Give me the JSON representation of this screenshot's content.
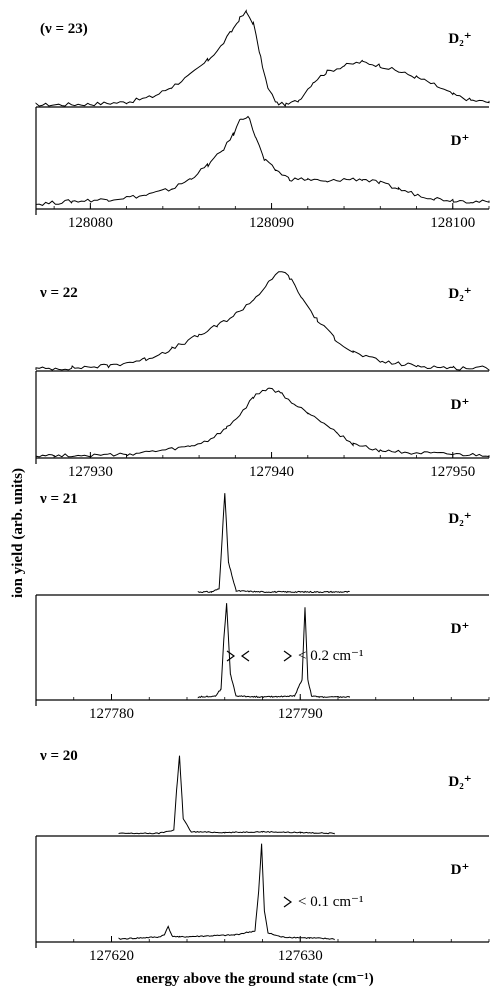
{
  "chart_data": {
    "type": "line",
    "xlabel": "energy above the ground state (cm⁻¹)",
    "ylabel": "ion yield (arb. units)",
    "groups": [
      {
        "vibrational_label": "(ν = 23)",
        "xlim": [
          128077,
          128102
        ],
        "xticks": [
          {
            "value": 128080,
            "label": "128080"
          },
          {
            "value": 128090,
            "label": "128090"
          },
          {
            "value": 128100,
            "label": "128100"
          }
        ],
        "panels": [
          {
            "ion_label": "D₂⁺",
            "ylim": [
              0,
              1
            ],
            "series": {
              "name": "D₂⁺",
              "x": [
                128077,
                128080,
                128082,
                128083.5,
                128084.5,
                128085.5,
                128086.5,
                128087.2,
                128087.8,
                128088.2,
                128088.6,
                128089,
                128089.4,
                128089.8,
                128090.3,
                128090.8,
                128091.5,
                128092.3,
                128093,
                128094,
                128095,
                128096,
                128097,
                128098,
                128099,
                128100,
                128101,
                128102
              ],
              "y": [
                0.01,
                0.02,
                0.04,
                0.1,
                0.2,
                0.32,
                0.48,
                0.62,
                0.78,
                0.9,
                0.98,
                0.86,
                0.5,
                0.18,
                0.03,
                0.01,
                0.06,
                0.25,
                0.35,
                0.42,
                0.46,
                0.42,
                0.36,
                0.3,
                0.22,
                0.12,
                0.06,
                0.04
              ]
            }
          },
          {
            "ion_label": "D⁺",
            "ylim": [
              0,
              1
            ],
            "series": {
              "name": "D⁺",
              "x": [
                128077,
                128079,
                128081,
                128083,
                128084.5,
                128085.5,
                128086.5,
                128087.3,
                128087.9,
                128088.3,
                128088.7,
                128089.1,
                128089.6,
                128090.2,
                128091,
                128092,
                128093,
                128094,
                128095,
                128096,
                128097,
                128098,
                128099,
                128100,
                128101,
                128102
              ],
              "y": [
                0.04,
                0.07,
                0.09,
                0.13,
                0.2,
                0.3,
                0.45,
                0.6,
                0.77,
                0.93,
                0.96,
                0.75,
                0.5,
                0.4,
                0.3,
                0.3,
                0.27,
                0.3,
                0.3,
                0.26,
                0.2,
                0.14,
                0.1,
                0.08,
                0.07,
                0.06
              ]
            }
          }
        ]
      },
      {
        "vibrational_label": "ν = 22",
        "xlim": [
          127927,
          127952
        ],
        "xticks": [
          {
            "value": 127930,
            "label": "127930"
          },
          {
            "value": 127940,
            "label": "127940"
          },
          {
            "value": 127950,
            "label": "127950"
          }
        ],
        "panels": [
          {
            "ion_label": "D₂⁺",
            "ylim": [
              0,
              1
            ],
            "series": {
              "name": "D₂⁺",
              "x": [
                127927,
                127929,
                127931,
                127933,
                127934.5,
                127936,
                127937,
                127938,
                127939,
                127939.8,
                127940.5,
                127941,
                127941.7,
                127942.5,
                127943.5,
                127944.5,
                127946,
                127948,
                127950,
                127952
              ],
              "y": [
                0.01,
                0.02,
                0.04,
                0.1,
                0.2,
                0.33,
                0.42,
                0.53,
                0.67,
                0.82,
                0.95,
                0.88,
                0.68,
                0.48,
                0.3,
                0.17,
                0.08,
                0.04,
                0.02,
                0.02
              ]
            }
          },
          {
            "ion_label": "D⁺",
            "ylim": [
              0,
              1
            ],
            "series": {
              "name": "D⁺",
              "x": [
                127927,
                127930,
                127932,
                127934,
                127935.5,
                127936.5,
                127937.5,
                127938.3,
                127939,
                127939.8,
                127940.5,
                127941.3,
                127942,
                127942.8,
                127943.6,
                127944.5,
                127946,
                127948,
                127950,
                127952
              ],
              "y": [
                0.02,
                0.02,
                0.03,
                0.08,
                0.13,
                0.2,
                0.35,
                0.53,
                0.74,
                0.85,
                0.79,
                0.64,
                0.55,
                0.44,
                0.3,
                0.16,
                0.08,
                0.05,
                0.03,
                0.02
              ]
            }
          }
        ]
      },
      {
        "vibrational_label": "ν = 21",
        "xlim": [
          127776,
          127800
        ],
        "xticks": [
          {
            "value": 127780,
            "label": "127780"
          },
          {
            "value": 127790,
            "label": "127790"
          }
        ],
        "panels": [
          {
            "ion_label": "D₂⁺",
            "ylim": [
              0,
              1
            ],
            "series": {
              "name": "D₂⁺",
              "x": [
                127784.6,
                127785.3,
                127785.7,
                127785.85,
                127786,
                127786.2,
                127786.6,
                127788,
                127790,
                127792.6
              ],
              "y": [
                0.02,
                0.02,
                0.05,
                0.5,
                0.97,
                0.3,
                0.03,
                0.02,
                0.02,
                0.02
              ]
            }
          },
          {
            "ion_label": "D⁺",
            "ylim": [
              0,
              1
            ],
            "series": {
              "name": "D⁺",
              "x": [
                127784.6,
                127785.5,
                127785.8,
                127785.95,
                127786.1,
                127786.3,
                127786.6,
                127788,
                127789.7,
                127790.1,
                127790.25,
                127790.4,
                127790.6,
                127791,
                127792.6
              ],
              "y": [
                0.02,
                0.03,
                0.1,
                0.6,
                0.97,
                0.25,
                0.03,
                0.02,
                0.03,
                0.2,
                0.93,
                0.2,
                0.03,
                0.02,
                0.02
              ]
            }
          }
        ]
      },
      {
        "vibrational_label": "ν = 20",
        "xlim": [
          127616,
          127640
        ],
        "xticks": [
          {
            "value": 127620,
            "label": "127620"
          },
          {
            "value": 127630,
            "label": "127630"
          }
        ],
        "panels": [
          {
            "ion_label": "D₂⁺",
            "ylim": [
              0,
              1
            ],
            "series": {
              "name": "D₂⁺",
              "x": [
                127620.4,
                127622.5,
                127623.3,
                127623.45,
                127623.6,
                127623.8,
                127624.2,
                127626,
                127628,
                127630,
                127631.8
              ],
              "y": [
                0.02,
                0.02,
                0.06,
                0.55,
                0.97,
                0.2,
                0.04,
                0.03,
                0.04,
                0.03,
                0.02
              ]
            }
          },
          {
            "ion_label": "D⁺",
            "ylim": [
              0,
              1
            ],
            "series": {
              "name": "D⁺",
              "x": [
                127620.4,
                127621.5,
                127622.5,
                127622.8,
                127623,
                127623.2,
                127623.6,
                127625,
                127626.5,
                127627.6,
                127627.8,
                127627.95,
                127628.1,
                127628.3,
                127629,
                127630.5,
                127631.8
              ],
              "y": [
                0.02,
                0.03,
                0.04,
                0.06,
                0.15,
                0.05,
                0.04,
                0.05,
                0.06,
                0.1,
                0.5,
                0.97,
                0.3,
                0.08,
                0.04,
                0.03,
                0.02
              ]
            }
          }
        ]
      }
    ],
    "annotations": [
      {
        "text": "< 0.2 cm⁻¹",
        "group": 2,
        "panel": 1
      },
      {
        "text": "< 0.1 cm⁻¹",
        "group": 3,
        "panel": 1
      }
    ]
  }
}
